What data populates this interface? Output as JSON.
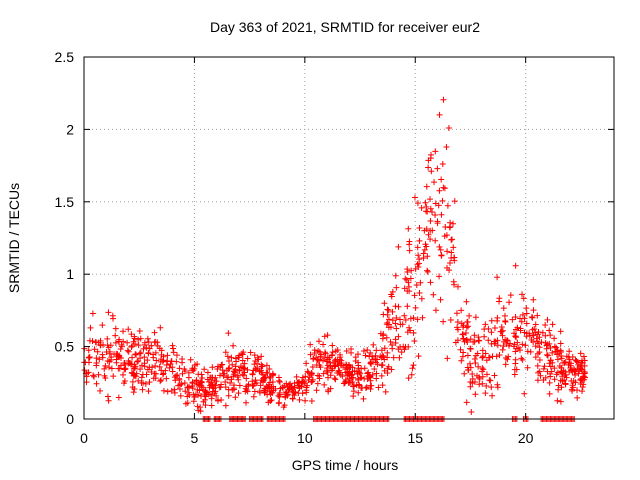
{
  "chart_data": {
    "type": "scatter",
    "title": "Day 363 of 2021, SRMTID for receiver eur2",
    "xlabel": "GPS time / hours",
    "ylabel": "SRMTID / TECUs",
    "xlim": [
      0,
      24
    ],
    "ylim": [
      0,
      2.5
    ],
    "xticks": [
      0,
      5,
      10,
      15,
      20
    ],
    "xtick_labels": [
      "0",
      "5",
      "10",
      "15",
      "20"
    ],
    "yticks": [
      0,
      0.5,
      1,
      1.5,
      2,
      2.5
    ],
    "ytick_labels": [
      "0",
      "0.5",
      "1",
      "1.5",
      "2",
      "2.5"
    ],
    "grid": true,
    "marker": "+",
    "series": [
      {
        "name": "SRMTID",
        "color": "#ff0000",
        "envelope": {
          "x": [
            0,
            0.3,
            0.6,
            0.9,
            1.2,
            1.5,
            1.8,
            2.1,
            2.5,
            2.9,
            3.3,
            3.8,
            4.3,
            4.8,
            5.2,
            5.6,
            6.0,
            6.4,
            6.8,
            7.2,
            7.6,
            8.0,
            8.4,
            8.8,
            9.2,
            9.6,
            10.0,
            10.4,
            10.8,
            11.2,
            11.6,
            12.0,
            12.4,
            12.8,
            13.2,
            13.6,
            14.0,
            14.4,
            14.8,
            15.1,
            15.4,
            15.7,
            16.0,
            16.2,
            16.4,
            16.7,
            17.0,
            17.3,
            17.6,
            18.0,
            18.4,
            18.8,
            19.2,
            19.6,
            19.9,
            20.2,
            20.5,
            20.8,
            21.2,
            21.6,
            22.0,
            22.4,
            22.7
          ],
          "level": [
            0.35,
            0.42,
            0.38,
            0.45,
            0.5,
            0.48,
            0.42,
            0.38,
            0.4,
            0.42,
            0.38,
            0.35,
            0.3,
            0.25,
            0.22,
            0.2,
            0.26,
            0.32,
            0.35,
            0.3,
            0.28,
            0.3,
            0.25,
            0.22,
            0.2,
            0.22,
            0.25,
            0.35,
            0.4,
            0.38,
            0.35,
            0.33,
            0.3,
            0.32,
            0.35,
            0.5,
            0.65,
            0.75,
            0.8,
            0.9,
            1.1,
            1.3,
            1.5,
            1.55,
            1.35,
            1.1,
            0.65,
            0.45,
            0.4,
            0.42,
            0.45,
            0.5,
            0.55,
            0.58,
            0.62,
            0.6,
            0.5,
            0.45,
            0.42,
            0.38,
            0.32,
            0.3,
            0.32
          ],
          "spread": [
            0.12,
            0.16,
            0.15,
            0.18,
            0.2,
            0.18,
            0.16,
            0.15,
            0.15,
            0.15,
            0.14,
            0.12,
            0.1,
            0.1,
            0.08,
            0.08,
            0.1,
            0.12,
            0.14,
            0.12,
            0.1,
            0.1,
            0.08,
            0.08,
            0.07,
            0.08,
            0.1,
            0.12,
            0.14,
            0.12,
            0.1,
            0.1,
            0.1,
            0.1,
            0.12,
            0.18,
            0.22,
            0.3,
            0.35,
            0.4,
            0.45,
            0.45,
            0.45,
            0.45,
            0.45,
            0.4,
            0.28,
            0.2,
            0.2,
            0.22,
            0.24,
            0.24,
            0.24,
            0.24,
            0.22,
            0.2,
            0.18,
            0.16,
            0.15,
            0.14,
            0.1,
            0.1,
            0.1
          ]
        },
        "baseline_segments": [
          [
            5.4,
            5.7
          ],
          [
            5.9,
            6.2
          ],
          [
            6.6,
            7.3
          ],
          [
            7.5,
            8.1
          ],
          [
            8.3,
            9.1
          ],
          [
            10.4,
            13.8
          ],
          [
            14.5,
            16.3
          ],
          [
            19.4,
            19.6
          ],
          [
            19.9,
            20.1
          ],
          [
            20.7,
            22.2
          ]
        ],
        "peak": {
          "x": 16.1,
          "y": 2.1
        }
      }
    ]
  }
}
